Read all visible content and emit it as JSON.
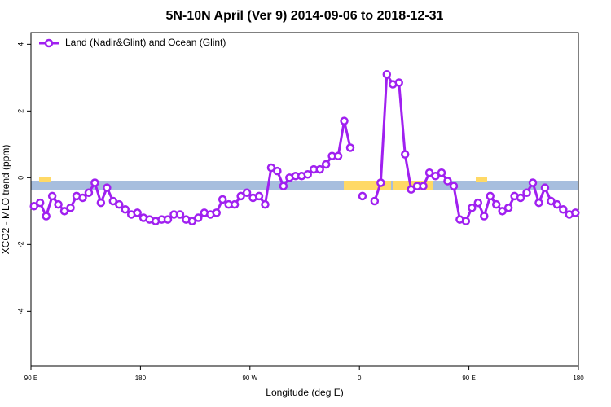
{
  "chart_data": {
    "type": "line",
    "title": "5N-10N April (Ver 9)   2014-09-06 to 2018-12-31",
    "x_label": "Longitude (deg E)",
    "y_label": "XCO2 - MLO trend (ppm)",
    "x": [
      92.5,
      97.5,
      102.5,
      107.5,
      112.5,
      117.5,
      122.5,
      127.5,
      132.5,
      137.5,
      142.5,
      147.5,
      152.5,
      157.5,
      162.5,
      167.5,
      172.5,
      177.5,
      182.5,
      187.5,
      192.5,
      197.5,
      202.5,
      207.5,
      212.5,
      217.5,
      222.5,
      227.5,
      232.5,
      237.5,
      242.5,
      247.5,
      252.5,
      257.5,
      262.5,
      267.5,
      272.5,
      277.5,
      282.5,
      287.5,
      292.5,
      297.5,
      302.5,
      307.5,
      312.5,
      317.5,
      322.5,
      327.5,
      332.5,
      337.5,
      342.5,
      347.5,
      352.5,
      357.5,
      362.5,
      367.5,
      372.5,
      377.5,
      382.5,
      387.5,
      392.5,
      397.5,
      402.5,
      407.5,
      412.5,
      417.5,
      422.5,
      427.5,
      432.5,
      437.5,
      442.5,
      447.5,
      452.5,
      457.5,
      462.5,
      467.5,
      472.5,
      477.5,
      482.5,
      487.5,
      492.5,
      497.5,
      502.5,
      507.5,
      512.5,
      517.5,
      522.5,
      527.5,
      532.5,
      537.5
    ],
    "series": [
      {
        "name": "Land (Nadir&Glint) and Ocean (Glint)",
        "color": "#a020f0",
        "values": [
          -0.85,
          -0.75,
          -1.15,
          -0.55,
          -0.8,
          -1.0,
          -0.9,
          -0.55,
          -0.6,
          -0.45,
          -0.15,
          -0.75,
          -0.3,
          -0.7,
          -0.8,
          -0.95,
          -1.1,
          -1.05,
          -1.2,
          -1.25,
          -1.3,
          -1.25,
          -1.25,
          -1.1,
          -1.1,
          -1.25,
          -1.3,
          -1.2,
          -1.05,
          -1.1,
          -1.05,
          -0.65,
          -0.8,
          -0.8,
          -0.55,
          -0.45,
          -0.6,
          -0.55,
          -0.8,
          0.3,
          0.2,
          -0.25,
          0.0,
          0.05,
          0.05,
          0.1,
          0.25,
          0.25,
          0.4,
          0.65,
          0.65,
          1.7,
          0.9,
          null,
          -0.55,
          null,
          -0.7,
          -0.15,
          3.1,
          2.8,
          2.85,
          0.7,
          -0.35,
          -0.25,
          -0.25,
          0.15,
          0.05,
          0.15,
          -0.1,
          -0.25,
          -1.25,
          -1.3,
          -0.9,
          -0.75,
          -1.15,
          -0.55,
          -0.8,
          -1.0,
          -0.9,
          -0.55,
          -0.6,
          -0.45,
          -0.15,
          -0.75,
          -0.3,
          -0.7,
          -0.8,
          -0.95,
          -1.1,
          -1.05
        ]
      }
    ],
    "xlim": [
      90,
      540
    ],
    "xticks": [
      {
        "value": 90,
        "label": "90 E"
      },
      {
        "value": 180,
        "label": "180"
      },
      {
        "value": 270,
        "label": "90 W"
      },
      {
        "value": 360,
        "label": "0"
      },
      {
        "value": 450,
        "label": "90 E"
      },
      {
        "value": 540,
        "label": "180"
      }
    ],
    "ylim": [
      -5.65,
      4.35
    ],
    "yticks": [
      -4,
      -2,
      0,
      2,
      4
    ],
    "legend": "top-left"
  }
}
